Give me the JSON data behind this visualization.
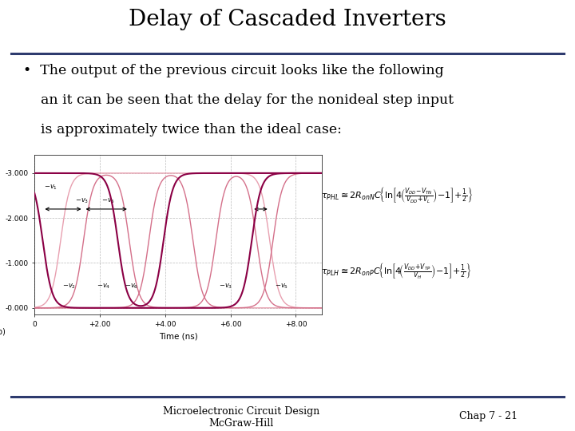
{
  "title": "Delay of Cascaded Inverters",
  "title_fontsize": 20,
  "title_font": "serif",
  "body_text_line1": "•  The output of the previous circuit looks like the following",
  "body_text_line2": "    an it can be seen that the delay for the nonideal step input",
  "body_text_line3": "    is approximately twice than the ideal case:",
  "body_fontsize": 12.5,
  "footer_left1": "Microelectronic Circuit Design",
  "footer_left2": "McGraw-Hill",
  "footer_right": "Chap 7 - 21",
  "footer_fontsize": 9,
  "bg_color": "#ffffff",
  "title_bar_color": "#2e3b6e",
  "footer_bar_color": "#2e3b6e",
  "vdd": 3.0,
  "dark_color": "#8b0045",
  "light_color": "#d4708a",
  "very_light_color": "#e8a0b0",
  "label_b": "(b)",
  "ytick_labels": [
    "-3.000",
    "-2.000",
    "-1.000",
    "-0.000"
  ],
  "xtick_labels": [
    "0",
    "+2.00",
    "+4.00",
    "+6.00",
    "+8.00"
  ],
  "xlabel": "Time (ns)"
}
